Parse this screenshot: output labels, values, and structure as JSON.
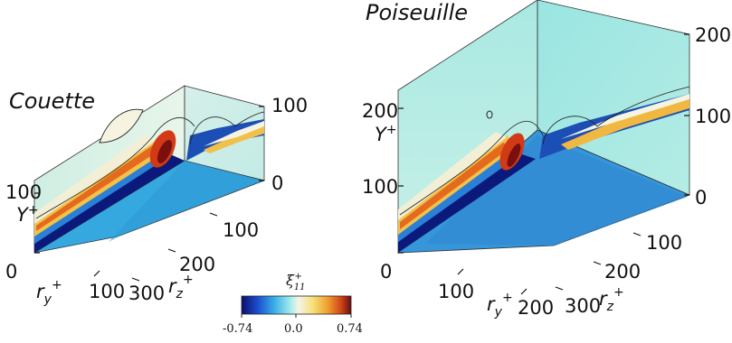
{
  "panels": {
    "couette": {
      "title": "Couette",
      "y_axis_label": "Y",
      "y_axis_sup": "+",
      "y_ticks": [
        "0",
        "100"
      ],
      "ry_label": "r",
      "ry_sub": "y",
      "ry_sup": "+",
      "ry_ticks": [
        "100"
      ],
      "rz_label": "r",
      "rz_sub": "z",
      "rz_sup": "+",
      "rz_ticks": [
        "100",
        "200",
        "300"
      ],
      "right_ticks": [
        "100",
        "0"
      ]
    },
    "poiseuille": {
      "title": "Poiseuille",
      "y_axis_label": "Y",
      "y_axis_sup": "+",
      "y_ticks": [
        "0",
        "100",
        "200"
      ],
      "ry_label": "r",
      "ry_sub": "y",
      "ry_sup": "+",
      "ry_ticks": [
        "100",
        "200"
      ],
      "rz_label": "r",
      "rz_sub": "z",
      "rz_sup": "+",
      "rz_ticks": [
        "100",
        "200",
        "300"
      ],
      "right_ticks": [
        "200",
        "100",
        "0"
      ]
    }
  },
  "colorbar": {
    "symbol": "ξ",
    "sub": "11",
    "sup": "+",
    "ticks": [
      "-0.74",
      "0.0",
      "0.74"
    ],
    "colors": [
      "#0b0f6b",
      "#1b4fd0",
      "#3ab0e6",
      "#a8ecec",
      "#f4f4e8",
      "#f6e07a",
      "#f0a330",
      "#d64a1a",
      "#6a0d12"
    ]
  }
}
